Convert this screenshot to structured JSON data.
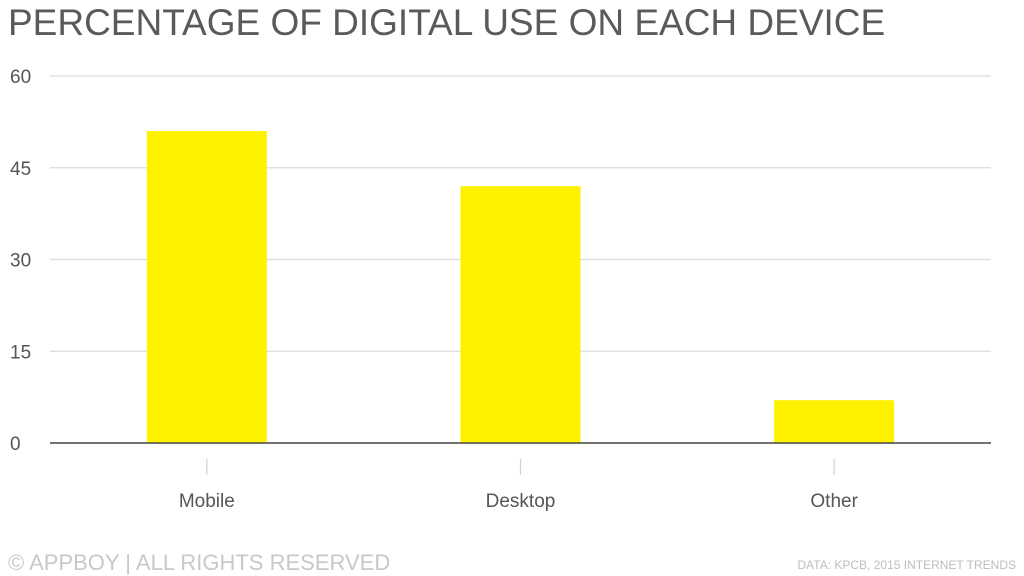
{
  "chart_data": {
    "type": "bar",
    "title": "PERCENTAGE OF DIGITAL USE ON EACH DEVICE",
    "categories": [
      "Mobile",
      "Desktop",
      "Other"
    ],
    "values": [
      51,
      42,
      7
    ],
    "xlabel": "",
    "ylabel": "",
    "ylim": [
      0,
      60
    ],
    "yticks": [
      0,
      15,
      30,
      45,
      60
    ],
    "grid": true,
    "bar_color": "#fff200"
  },
  "footer": {
    "copyright": "© APPBOY | ALL RIGHTS RESERVED",
    "source": "DATA: KPCB, 2015 INTERNET TRENDS"
  }
}
